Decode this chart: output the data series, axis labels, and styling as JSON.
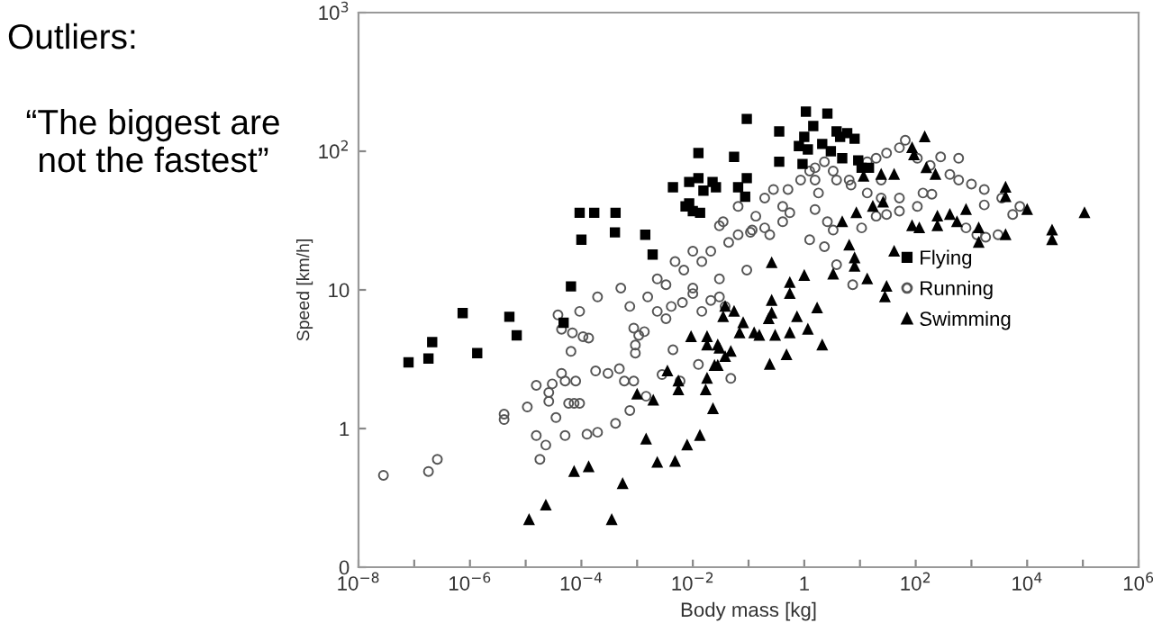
{
  "chart_data": {
    "type": "scatter",
    "xlabel": "Body mass [kg]",
    "ylabel": "Speed [km/h]",
    "log": "xy",
    "grid": false,
    "legend": "right",
    "annotations": [
      "Outliers:",
      "“The biggest are\nnot the fastest”"
    ],
    "xlim": [
      1e-08,
      1000000.0
    ],
    "ylim": [
      0.1,
      1000
    ],
    "xticks": [
      {
        "value": 1e-08,
        "label": "10$^{−8}$"
      },
      {
        "value": 1e-07,
        "label": null
      },
      {
        "value": 1e-06,
        "label": "10$^{−6}$"
      },
      {
        "value": 1e-05,
        "label": null
      },
      {
        "value": 0.0001,
        "label": "10$^{−4}$"
      },
      {
        "value": 0.001,
        "label": null
      },
      {
        "value": 0.01,
        "label": "10$^{−2}$"
      },
      {
        "value": 0.1,
        "label": null
      },
      1,
      {
        "value": 10,
        "label": null
      },
      {
        "value": 100,
        "label": "10$^{2}$"
      },
      {
        "value": 1000,
        "label": null
      },
      {
        "value": 10000,
        "label": "10$^{4}$"
      },
      {
        "value": 100000,
        "label": null
      },
      {
        "value": 1000000,
        "label": "10$^{6}$"
      }
    ],
    "yticks": [
      {
        "value": 0.1,
        "label": "0"
      },
      1,
      10,
      {
        "value": 100,
        "label": "10$^{2}$"
      },
      {
        "value": 1000,
        "label": "10$^{3}$"
      }
    ],
    "series": [
      {
        "name": "Flying",
        "color": "#000000",
        "marker": "square",
        "x": [
          6.5e-05,
          9.3e-05,
          0.00017,
          0.00041,
          0.0001,
          0.0004,
          0.0014,
          0.0019,
          0.0044,
          0.0086,
          0.0126,
          0.0226,
          0.026,
          0.0155,
          0.0086,
          0.0074,
          0.01,
          0.0135,
          0.0126,
          0.055,
          7.9e-08,
          1.8e-07,
          2.1e-07,
          7.4e-07,
          1.35e-06,
          5.1e-06,
          6.9e-06,
          4.8e-05,
          0.093,
          0.093,
          0.065,
          0.087,
          0.355,
          0.355,
          1.07,
          1.45,
          2.6,
          1.0,
          0.8,
          1.16,
          0.93,
          2.1,
          3.0,
          3.8,
          4.4,
          5.9,
          8.0,
          4.8,
          9.3,
          10.7,
          14.5
        ],
        "values": [
          10.6,
          36,
          36,
          36,
          23,
          26,
          25,
          18,
          55,
          60,
          64,
          60,
          55,
          52,
          42,
          40,
          37,
          36,
          97,
          91,
          3.0,
          3.2,
          4.2,
          6.8,
          3.5,
          6.4,
          4.7,
          5.8,
          171,
          64,
          55,
          47,
          139,
          84,
          193,
          152,
          187,
          127,
          109,
          103,
          81,
          113,
          100,
          139,
          127,
          135,
          123,
          89,
          86,
          76,
          76
        ]
      },
      {
        "name": "Running",
        "color": "#555555",
        "marker": "circle",
        "x": [
          2.8e-08,
          1.8e-07,
          2.6e-07,
          4.1e-06,
          4.1e-06,
          1.07e-05,
          1.55e-05,
          1.8e-05,
          2.3e-05,
          1.55e-05,
          2.6e-05,
          2.6e-05,
          3e-05,
          3.5e-05,
          4.4e-05,
          5.1e-05,
          5.1e-05,
          5.9e-05,
          7.4e-05,
          7.9e-05,
          9.3e-05,
          0.000126,
          0.000195,
          0.00018,
          0.0003,
          0.00041,
          0.00048,
          0.00059,
          0.00074,
          0.00087,
          0.00145,
          0.0028,
          0.0044,
          0.0059,
          0.0126,
          0.048,
          3.8e-05,
          4.4e-05,
          6.5e-05,
          6.9e-05,
          9.3e-05,
          0.000107,
          0.000135,
          0.000195,
          0.00087,
          0.00107,
          0.00093,
          0.00093,
          0.00135,
          0.0023,
          0.0033,
          0.0041,
          0.0065,
          0.01,
          0.0145,
          0.021,
          0.03,
          0.038,
          0.035,
          0.00155,
          0.0033,
          0.0069,
          0.0145,
          0.021,
          0.044,
          0.065,
          0.135,
          0.195,
          0.28,
          0.093,
          0.03,
          0.01,
          0.00051,
          0.00074,
          0.0023,
          0.0048,
          0.01,
          0.03,
          0.065,
          0.116,
          0.24,
          0.41,
          0.51,
          0.86,
          1.25,
          0.108,
          0.195,
          0.41,
          0.55,
          1.56,
          1.8,
          1.56,
          2.6,
          3.3,
          1.25,
          2.3,
          3.8,
          7.4,
          10.7,
          19.5,
          30,
          51,
          3.8,
          6.9,
          13.5,
          24,
          19.5,
          30,
          51,
          65,
          107,
          182,
          280,
          590,
          410,
          590,
          1000,
          1700,
          1700,
          3500,
          5500,
          7400,
          800,
          1250,
          1800,
          3000,
          135,
          107,
          195,
          13.5,
          6.4,
          3.3,
          2.3,
          1.56,
          51,
          24
        ],
        "values": [
          0.46,
          0.49,
          0.6,
          1.27,
          1.16,
          1.43,
          0.89,
          0.6,
          0.76,
          2.05,
          1.82,
          1.57,
          2.1,
          1.2,
          2.5,
          2.2,
          0.89,
          1.52,
          1.52,
          2.2,
          1.52,
          0.91,
          0.94,
          2.6,
          2.5,
          1.09,
          2.7,
          2.2,
          1.35,
          2.2,
          1.71,
          2.45,
          3.7,
          2.2,
          2.9,
          2.3,
          6.6,
          5.2,
          3.6,
          4.9,
          7.0,
          4.6,
          4.5,
          8.9,
          5.3,
          4.7,
          4.0,
          3.5,
          5.0,
          7.0,
          6.2,
          7.6,
          8.1,
          9.4,
          7.0,
          8.4,
          8.9,
          7.6,
          31,
          8.9,
          10.9,
          13.9,
          16,
          19,
          22,
          25,
          34,
          46,
          53,
          13.9,
          12,
          10.3,
          10.3,
          7.6,
          12,
          16,
          19,
          29,
          40,
          27,
          25,
          40,
          53,
          62,
          72,
          26,
          28,
          31,
          36,
          62,
          50,
          38,
          31,
          27,
          23,
          20.5,
          15.2,
          10.9,
          28,
          34,
          35,
          37,
          62,
          57,
          50,
          62,
          89,
          97,
          106,
          120,
          89,
          79,
          91,
          89,
          68,
          62,
          58,
          53,
          41,
          46,
          35,
          40,
          28,
          25,
          24,
          25,
          50,
          40,
          49,
          84,
          62,
          72,
          84,
          76,
          46,
          46
        ]
      },
      {
        "name": "Swimming",
        "color": "#000000",
        "marker": "triangle",
        "x": [
          145,
          86,
          93,
          155,
          226,
          41,
          24,
          4100,
          4100,
          10000,
          107000,
          28000,
          28000,
          4100,
          1350,
          1350,
          800,
          410,
          550,
          245,
          245,
          86,
          116,
          41,
          30,
          28,
          13.5,
          8,
          8,
          6.4,
          3.3,
          1.0,
          0.55,
          0.55,
          0.26,
          0.26,
          8.6,
          17,
          26,
          4.8,
          11.6,
          1.7,
          1.16,
          2.1,
          0.74,
          0.55,
          0.26,
          0.3,
          0.23,
          0.156,
          0.08,
          0.069,
          0.126,
          0.048,
          0.24,
          0.48,
          0.03,
          0.055,
          0.038,
          1.15e-05,
          2.3e-05,
          7.4e-05,
          0.000135,
          0.00035,
          0.00055,
          0.001,
          0.00145,
          0.00195,
          0.0023,
          0.0035,
          0.0048,
          0.0055,
          0.0055,
          0.0079,
          0.0134,
          0.017,
          0.018,
          0.023,
          0.0245,
          0.028,
          0.028,
          0.018,
          0.038,
          0.018,
          0.0093,
          0.035
        ],
        "values": [
          127,
          106,
          94,
          76,
          68,
          68,
          68,
          55,
          47,
          38,
          36,
          27,
          23,
          25,
          28,
          22,
          38,
          35,
          31,
          34,
          29,
          29,
          28,
          19,
          10.6,
          8.9,
          12,
          17,
          14.8,
          21,
          13,
          12.7,
          11.3,
          9.4,
          15.7,
          8.4,
          36,
          40,
          43,
          31,
          66,
          7.4,
          5.2,
          4.0,
          6.4,
          4.9,
          6.8,
          4.7,
          6.2,
          4.7,
          5.8,
          4.9,
          4.9,
          3.6,
          2.9,
          3.4,
          3.8,
          7.0,
          7.6,
          0.22,
          0.28,
          0.49,
          0.53,
          0.22,
          0.4,
          1.77,
          0.84,
          1.6,
          0.57,
          2.6,
          0.58,
          1.9,
          2.2,
          0.76,
          0.89,
          1.9,
          2.3,
          1.39,
          2.85,
          4.0,
          2.85,
          4.0,
          3.3,
          4.6,
          4.6,
          6.4
        ]
      }
    ]
  }
}
